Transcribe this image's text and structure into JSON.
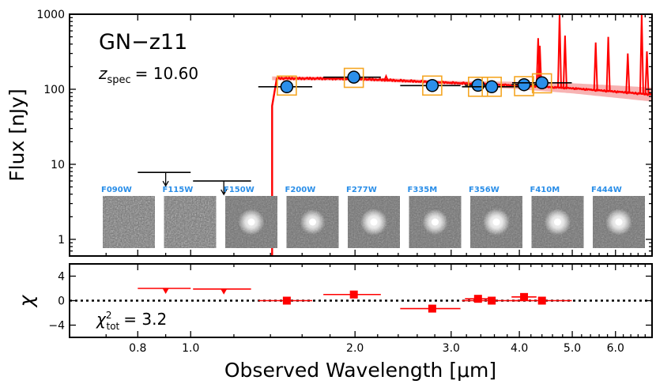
{
  "chart_data": [
    {
      "type": "scatter",
      "panel": "sed",
      "title": "GN−z11",
      "redshift_prefix": "z",
      "redshift_subscript": "spec",
      "redshift_value": "= 10.60",
      "ylabel": "Flux  [nJy]",
      "yscale": "log",
      "ylim": [
        0.6,
        1000
      ],
      "xlim": [
        0.6,
        7.0
      ],
      "y_ticks": [
        {
          "value": 1,
          "label": "1"
        },
        {
          "value": 10,
          "label": "10"
        },
        {
          "value": 100,
          "label": "100"
        },
        {
          "value": 1000,
          "label": "1000"
        }
      ],
      "photometry": [
        {
          "filter": "F150W",
          "wavelength": 1.5,
          "flux": 108,
          "xerr": [
            1.33,
            1.67
          ],
          "model_flux": 112
        },
        {
          "filter": "F200W",
          "wavelength": 1.99,
          "flux": 145,
          "xerr": [
            1.75,
            2.23
          ],
          "model_flux": 142
        },
        {
          "filter": "F277W",
          "wavelength": 2.77,
          "flux": 112,
          "xerr": [
            2.42,
            3.12
          ],
          "model_flux": 112
        },
        {
          "filter": "F335M",
          "wavelength": 3.36,
          "flux": 113,
          "xerr": [
            3.18,
            3.54
          ],
          "model_flux": 108
        },
        {
          "filter": "F356W",
          "wavelength": 3.56,
          "flux": 108,
          "xerr": [
            3.14,
            3.98
          ],
          "model_flux": 108
        },
        {
          "filter": "F410M",
          "wavelength": 4.08,
          "flux": 115,
          "xerr": [
            3.87,
            4.3
          ],
          "model_flux": 110
        },
        {
          "filter": "F444W",
          "wavelength": 4.4,
          "flux": 122,
          "xerr": [
            3.88,
            4.99
          ],
          "model_flux": 120
        }
      ],
      "upper_limits": [
        {
          "filter": "F090W",
          "wavelength": 0.9,
          "flux": 7.8,
          "xerr": [
            0.8,
            1.0
          ]
        },
        {
          "filter": "F115W",
          "wavelength": 1.15,
          "flux": 6.0,
          "xerr": [
            1.01,
            1.29
          ]
        }
      ],
      "model_spectrum": {
        "break_wavelength": 1.41,
        "continuum": [
          [
            1.41,
            140
          ],
          [
            2.0,
            138
          ],
          [
            3.0,
            122
          ],
          [
            4.0,
            112
          ],
          [
            5.0,
            103
          ],
          [
            6.0,
            93
          ],
          [
            7.0,
            85
          ]
        ],
        "emission_lines": [
          {
            "wavelength": 2.0,
            "flux": 150
          },
          {
            "wavelength": 2.28,
            "flux": 150
          },
          {
            "wavelength": 4.33,
            "flux": 480
          },
          {
            "wavelength": 4.36,
            "flux": 380
          },
          {
            "wavelength": 4.74,
            "flux": 1000
          },
          {
            "wavelength": 4.85,
            "flux": 520
          },
          {
            "wavelength": 5.52,
            "flux": 420
          },
          {
            "wavelength": 5.82,
            "flux": 500
          },
          {
            "wavelength": 6.32,
            "flux": 300
          },
          {
            "wavelength": 6.7,
            "flux": 1000
          },
          {
            "wavelength": 6.85,
            "flux": 320
          }
        ]
      },
      "colors": {
        "model": "#ff0000",
        "model_band": "#f5a0a0",
        "point_fill": "#2b8fea",
        "box": "#f5a623"
      }
    },
    {
      "type": "scatter",
      "panel": "residuals",
      "ylabel": "χ",
      "xlabel": "Observed  Wavelength  [μm]",
      "ylim": [
        -6,
        6
      ],
      "y_ticks": [
        {
          "value": 4,
          "label": "4"
        },
        {
          "value": 0,
          "label": "0"
        },
        {
          "value": -4,
          "label": "−4"
        }
      ],
      "x_ticks": [
        {
          "value": 0.8,
          "label": "0.8"
        },
        {
          "value": 1.0,
          "label": "1.0"
        },
        {
          "value": 2.0,
          "label": "2.0"
        },
        {
          "value": 3.0,
          "label": "3.0"
        },
        {
          "value": 4.0,
          "label": "4.0"
        },
        {
          "value": 5.0,
          "label": "5.0"
        },
        {
          "value": 6.0,
          "label": "6.0"
        }
      ],
      "chi2_prefix": "χ",
      "chi2_superscript": "2",
      "chi2_subscript": "tot",
      "chi2_value": "= 3.2",
      "residuals": [
        {
          "filter": "F150W",
          "wavelength": 1.5,
          "chi": 0.0,
          "xerr": [
            1.33,
            1.67
          ]
        },
        {
          "filter": "F200W",
          "wavelength": 1.99,
          "chi": 1.0,
          "xerr": [
            1.75,
            2.23
          ]
        },
        {
          "filter": "F277W",
          "wavelength": 2.77,
          "chi": -1.3,
          "xerr": [
            2.42,
            3.12
          ]
        },
        {
          "filter": "F335M",
          "wavelength": 3.36,
          "chi": 0.3,
          "xerr": [
            3.18,
            3.54
          ]
        },
        {
          "filter": "F356W",
          "wavelength": 3.56,
          "chi": 0.0,
          "xerr": [
            3.14,
            3.98
          ]
        },
        {
          "filter": "F410M",
          "wavelength": 4.08,
          "chi": 0.6,
          "xerr": [
            3.87,
            4.3
          ]
        },
        {
          "filter": "F444W",
          "wavelength": 4.4,
          "chi": 0.0,
          "xerr": [
            3.88,
            4.99
          ]
        }
      ],
      "residual_limits": [
        {
          "filter": "F090W",
          "wavelength": 0.9,
          "chi": 2.0,
          "xerr": [
            0.8,
            1.0
          ]
        },
        {
          "filter": "F115W",
          "wavelength": 1.15,
          "chi": 1.9,
          "xerr": [
            1.01,
            1.29
          ]
        }
      ]
    }
  ],
  "cutouts": [
    {
      "filter": "F090W",
      "detected": false,
      "brightness": 0
    },
    {
      "filter": "F115W",
      "detected": false,
      "brightness": 0
    },
    {
      "filter": "F150W",
      "detected": true,
      "brightness": 0.9
    },
    {
      "filter": "F200W",
      "detected": true,
      "brightness": 0.8
    },
    {
      "filter": "F277W",
      "detected": true,
      "brightness": 1.0
    },
    {
      "filter": "F335M",
      "detected": true,
      "brightness": 0.85
    },
    {
      "filter": "F356W",
      "detected": true,
      "brightness": 1.0
    },
    {
      "filter": "F410M",
      "detected": true,
      "brightness": 0.95
    },
    {
      "filter": "F444W",
      "detected": true,
      "brightness": 0.95
    }
  ]
}
